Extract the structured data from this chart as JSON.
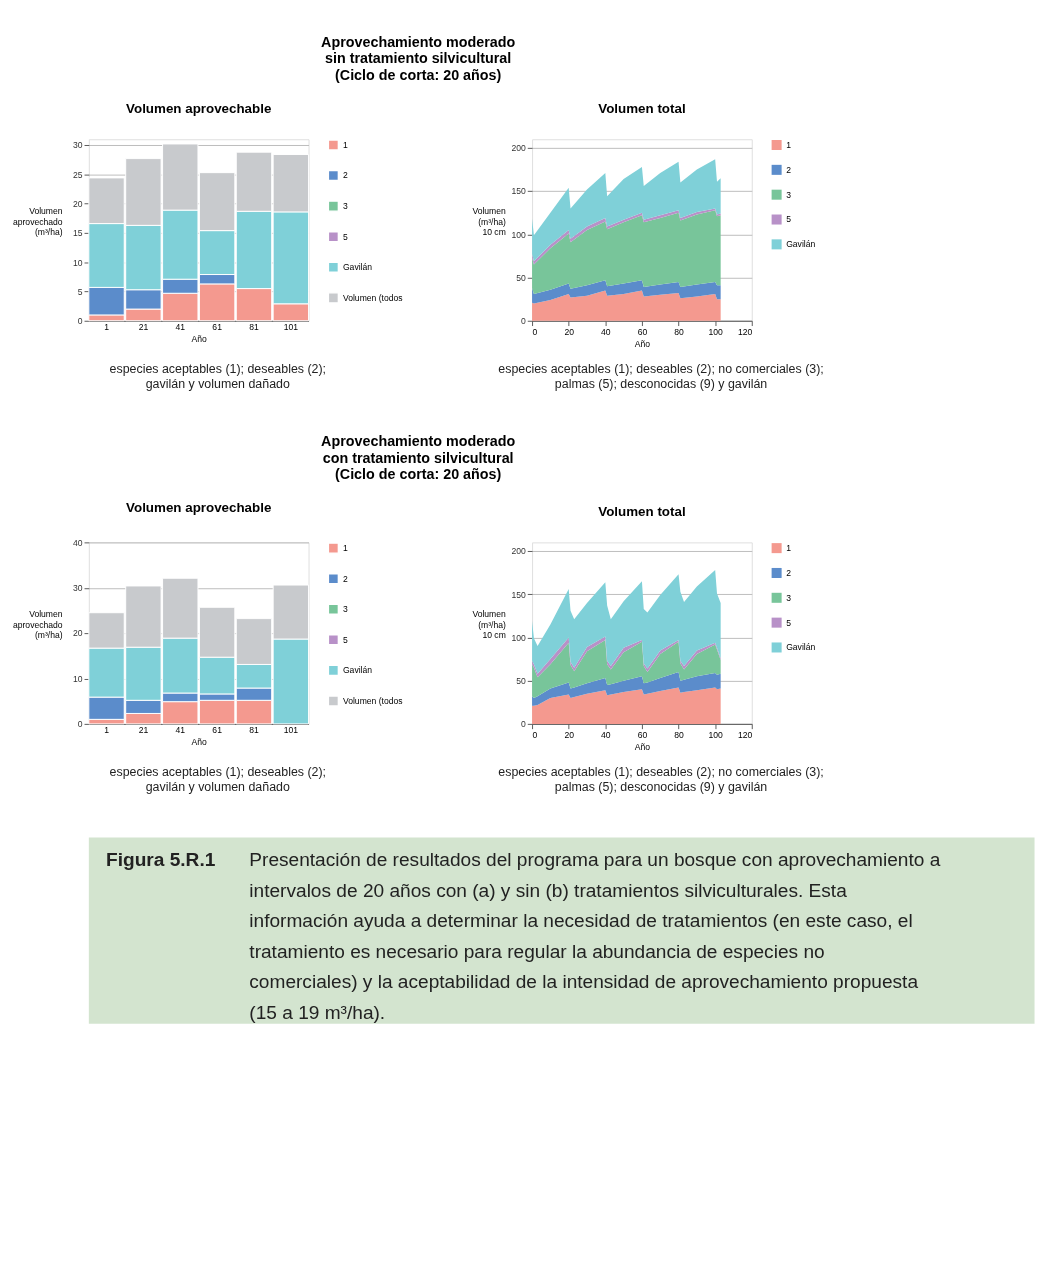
{
  "chart_data": [
    {
      "type": "bar",
      "stacked": true,
      "title": "Volumen aprovechable",
      "xlabel": "Año",
      "ylabel": "Volumen\naprovechado\n(m³/ha)",
      "categories": [
        "1",
        "21",
        "41",
        "61",
        "81",
        "101"
      ],
      "ylim": [
        0,
        31
      ],
      "yticks": [
        0,
        5,
        10,
        15,
        20,
        25,
        30
      ],
      "grid": "y",
      "legend": "right",
      "annotations": [
        "Aprovechamiento moderado\nsin tratamiento silvicultural\n(Ciclo de corta: 20 años)",
        "especies aceptables (1); deseables (2);\ngavilán y volumen dañado"
      ],
      "series": [
        {
          "name": "1",
          "color": "#f4998f",
          "values": [
            1.0,
            2.0,
            4.7,
            6.3,
            5.5,
            2.9
          ]
        },
        {
          "name": "2",
          "color": "#5b8ccb",
          "values": [
            4.7,
            3.3,
            2.4,
            1.6,
            null,
            null
          ]
        },
        {
          "name": "3",
          "color": "#78c59a",
          "values": [
            null,
            null,
            null,
            null,
            null,
            null
          ]
        },
        {
          "name": "5",
          "color": "#b891c8",
          "values": [
            null,
            null,
            null,
            null,
            null,
            null
          ]
        },
        {
          "name": "Gavilán",
          "color": "#7fd0d8",
          "values": [
            10.9,
            11.0,
            11.8,
            7.5,
            13.2,
            15.7
          ]
        },
        {
          "name": "Volumen (todos",
          "color": "#c8cacd",
          "values": [
            7.8,
            11.4,
            11.3,
            9.9,
            10.1,
            9.8
          ]
        }
      ]
    },
    {
      "type": "area",
      "stacked": true,
      "title": "Volumen total",
      "xlabel": "Año",
      "ylabel": "Volumen\n(m³/ha)\n10 cm",
      "xlim": [
        0,
        120
      ],
      "xticks": [
        0,
        20,
        40,
        60,
        80,
        100,
        120
      ],
      "ylim": [
        0,
        210
      ],
      "yticks": [
        0,
        50,
        100,
        150,
        200
      ],
      "grid": "y",
      "legend": "right",
      "annotations": [
        "especies aceptables (1); deseables (2); no comerciales (3);\npalmas (5); desconocidas (9) y gavilán"
      ],
      "x": [
        0,
        1,
        10,
        20,
        21,
        30,
        40,
        41,
        50,
        60,
        61,
        70,
        80,
        81,
        90,
        100,
        101,
        103
      ],
      "series": [
        {
          "name": "1",
          "color": "#f4998f",
          "values": [
            21,
            20,
            24,
            31,
            27,
            29,
            35,
            29,
            31,
            35,
            28,
            30,
            32,
            26,
            28,
            31,
            25,
            25
          ]
        },
        {
          "name": "2",
          "color": "#5b8ccb",
          "values": [
            17,
            11,
            12,
            12,
            10,
            12,
            12,
            11,
            12,
            12,
            11,
            12,
            13,
            13,
            14,
            14,
            16,
            16
          ]
        },
        {
          "name": "3",
          "color": "#78c59a",
          "values": [
            35,
            34,
            48,
            58,
            54,
            64,
            68,
            66,
            71,
            75,
            75,
            77,
            80,
            77,
            81,
            83,
            80,
            81
          ]
        },
        {
          "name": "5",
          "color": "#b891c8",
          "values": [
            4,
            4,
            4,
            4,
            4,
            4,
            4,
            3,
            3,
            3,
            3,
            3,
            3,
            3,
            3,
            2,
            2,
            2
          ]
        },
        {
          "name": "Gavilán",
          "color": "#7fd0d8",
          "values": [
            41,
            30,
            37,
            49,
            35,
            43,
            52,
            35,
            47,
            53,
            39,
            49,
            56,
            41,
            49,
            57,
            38,
            41
          ]
        }
      ]
    },
    {
      "type": "bar",
      "stacked": true,
      "title": "Volumen aprovechable",
      "xlabel": "Año",
      "ylabel": "Volumen\naprovechado\n(m³/ha)",
      "categories": [
        "1",
        "21",
        "41",
        "61",
        "81",
        "101"
      ],
      "ylim": [
        0,
        40
      ],
      "yticks": [
        0,
        10,
        20,
        30,
        40
      ],
      "grid": "y",
      "legend": "right",
      "annotations": [
        "Aprovechamiento moderado\ncon tratamiento silvicultural\n(Ciclo de corta: 20 años)",
        "especies aceptables (1); deseables (2);\ngavilán y volumen dañado"
      ],
      "series": [
        {
          "name": "1",
          "color": "#f4998f",
          "values": [
            1.0,
            2.3,
            4.9,
            5.2,
            5.2,
            null
          ]
        },
        {
          "name": "2",
          "color": "#5b8ccb",
          "values": [
            4.9,
            2.9,
            1.9,
            1.4,
            2.7,
            null
          ]
        },
        {
          "name": "3",
          "color": "#78c59a",
          "values": [
            null,
            null,
            null,
            null,
            null,
            null
          ]
        },
        {
          "name": "5",
          "color": "#b891c8",
          "values": [
            null,
            null,
            null,
            null,
            null,
            null
          ]
        },
        {
          "name": "Gavilán",
          "color": "#7fd0d8",
          "values": [
            10.8,
            11.7,
            12.1,
            8.1,
            5.2,
            18.7
          ]
        },
        {
          "name": "Volumen (todos",
          "color": "#c8cacd",
          "values": [
            7.8,
            13.5,
            13.2,
            11.0,
            10.1,
            11.9
          ]
        }
      ]
    },
    {
      "type": "area",
      "stacked": true,
      "title": "Volumen total",
      "xlabel": "Año",
      "ylabel": "Volumen\n(m³/ha)\n10 cm",
      "xlim": [
        0,
        120
      ],
      "xticks": [
        0,
        20,
        40,
        60,
        80,
        100,
        120
      ],
      "ylim": [
        0,
        210
      ],
      "yticks": [
        0,
        50,
        100,
        150,
        200
      ],
      "grid": "y",
      "legend": "right",
      "annotations": [
        "especies aceptables (1); deseables (2); no comerciales (3);\npalmas (5); desconocidas (9) y gavilán"
      ],
      "x": [
        0,
        1,
        3,
        10,
        20,
        21,
        23,
        30,
        40,
        41,
        43,
        50,
        60,
        61,
        63,
        70,
        80,
        81,
        83,
        90,
        100,
        101,
        103
      ],
      "series": [
        {
          "name": "1",
          "color": "#f4998f",
          "values": [
            21,
            21,
            22,
            30,
            34,
            30,
            31,
            35,
            39,
            33,
            34,
            37,
            40,
            34,
            35,
            38,
            42,
            36,
            37,
            39,
            42,
            40,
            41
          ]
        },
        {
          "name": "2",
          "color": "#5b8ccb",
          "values": [
            11,
            9,
            10,
            11,
            14,
            11,
            11,
            12,
            14,
            12,
            12,
            13,
            15,
            13,
            13,
            15,
            18,
            14,
            14,
            16,
            17,
            17,
            17
          ]
        },
        {
          "name": "3",
          "color": "#78c59a",
          "values": [
            37,
            35,
            22,
            28,
            46,
            27,
            19,
            37,
            44,
            24,
            17,
            33,
            40,
            20,
            12,
            28,
            35,
            20,
            12,
            26,
            33,
            29,
            16
          ]
        },
        {
          "name": "5",
          "color": "#b891c8",
          "values": [
            4,
            4,
            4,
            6,
            6,
            4,
            4,
            5,
            4,
            4,
            4,
            5,
            2,
            3,
            4,
            4,
            2,
            3,
            4,
            4,
            2,
            2,
            2
          ]
        },
        {
          "name": "Gavilán",
          "color": "#7fd0d8",
          "values": [
            46,
            30,
            32,
            40,
            56,
            59,
            56,
            51,
            63,
            64,
            54,
            54,
            68,
            63,
            65,
            64,
            76,
            80,
            74,
            74,
            84,
            63,
            64
          ]
        }
      ]
    },
    {
      "type": "other",
      "title": "Figura 5.R.1",
      "annotations": [
        "Presentación de resultados del programa para un bosque con aprovechamiento a intervalos de 20 años con (a) y sin (b) tratamientos silviculturales. Esta información ayuda a determinar la necesidad de tratamientos (en este caso, el tratamiento es necesario para regular la abundancia de especies no comerciales) y la aceptabilidad de la intensidad de aprovechamiento propuesta (15 a 19 m³/ha)."
      ]
    }
  ]
}
